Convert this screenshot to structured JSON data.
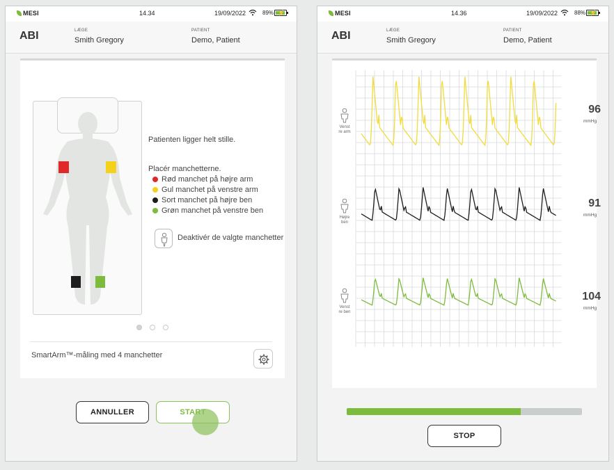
{
  "left": {
    "status": {
      "brand": "MESI",
      "time": "14.34",
      "date": "19/09/2022",
      "battery": "89%"
    },
    "header": {
      "app": "ABI",
      "doctor_label": "LÆGE",
      "doctor": "Smith Gregory",
      "patient_label": "PATIENT",
      "patient": "Demo, Patient"
    },
    "instructions": {
      "line1": "Patienten ligger helt stille.",
      "line2": "Placér manchetterne.",
      "cuffs": [
        {
          "label": "Rød manchet på højre arm",
          "color": "#e02a2a"
        },
        {
          "label": "Gul manchet på venstre arm",
          "color": "#f4d21c"
        },
        {
          "label": "Sort manchet på højre ben",
          "color": "#1c1c1c"
        },
        {
          "label": "Grøn manchet på venstre ben",
          "color": "#7dbb3c"
        }
      ],
      "deactivate": "Deaktivér de valgte manchetter"
    },
    "pager": {
      "pages": 3,
      "active": 1
    },
    "measurement": "SmartArm™-måling med 4 manchetter",
    "buttons": {
      "cancel": "ANNULLER",
      "start": "START"
    }
  },
  "right": {
    "status": {
      "brand": "MESI",
      "time": "14.36",
      "date": "19/09/2022",
      "battery": "88%"
    },
    "header": {
      "app": "ABI",
      "doctor_label": "LÆGE",
      "doctor": "Smith Gregory",
      "patient_label": "PATIENT",
      "patient": "Demo, Patient"
    },
    "channels": [
      {
        "label_l1": "Venst",
        "label_l2": "re arm",
        "value": "96",
        "unit": "mmHg",
        "color": "#f2dc3c"
      },
      {
        "label_l1": "Højre",
        "label_l2": "ben",
        "value": "91",
        "unit": "mmHg",
        "color": "#1c1c1c"
      },
      {
        "label_l1": "Venst",
        "label_l2": "re ben",
        "value": "104",
        "unit": "mmHg",
        "color": "#7dbb3c"
      }
    ],
    "progress": 0.74,
    "buttons": {
      "stop": "STOP"
    }
  },
  "colors": {
    "accent": "#7dbb3c",
    "grid": "#d8dadb",
    "track": "#c9ceca"
  }
}
